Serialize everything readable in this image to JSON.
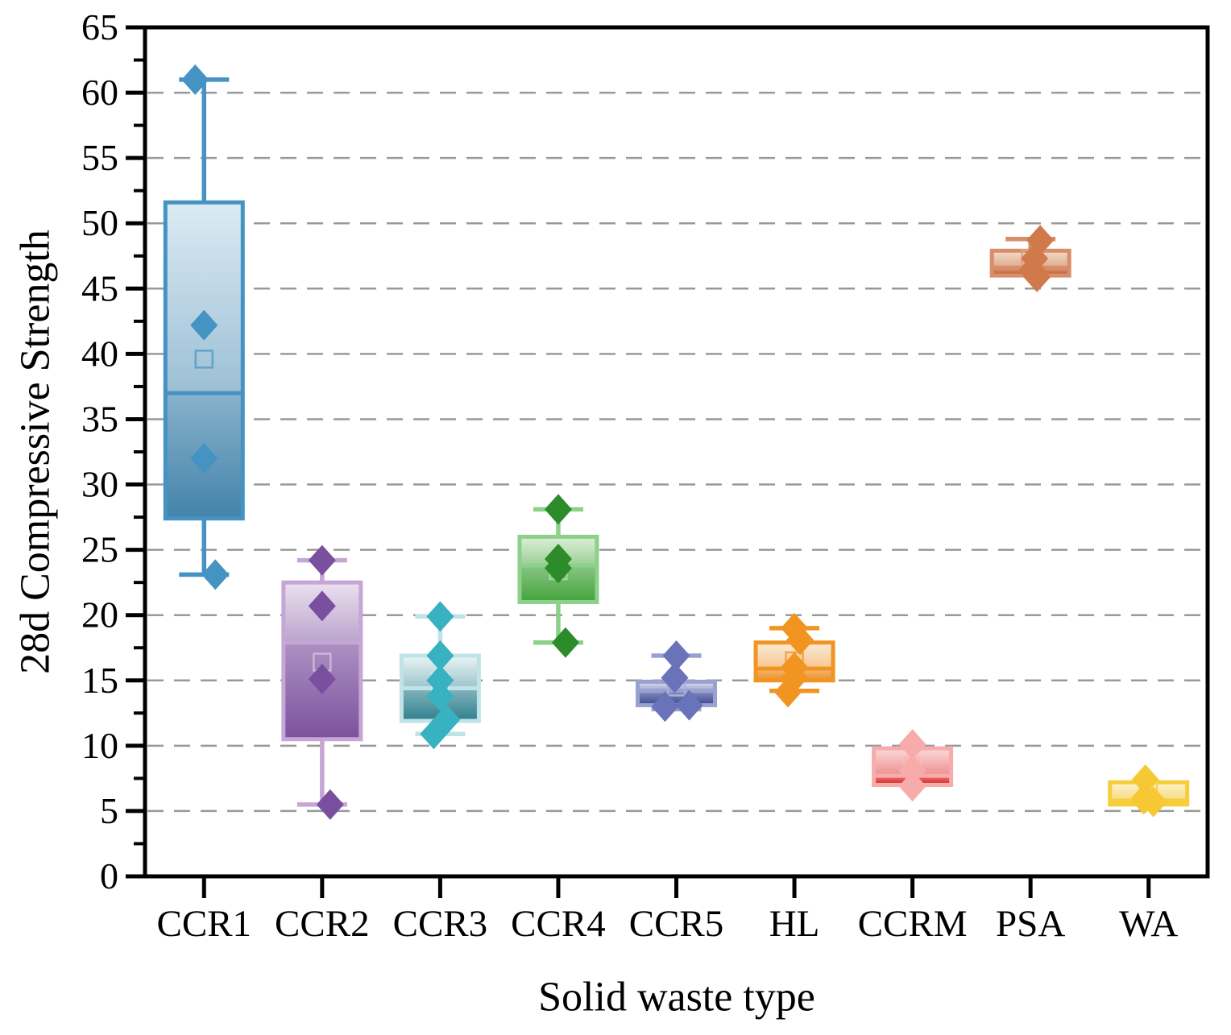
{
  "figure": {
    "background": "#ffffff",
    "frame_color": "#000000",
    "grid_color": "#999999"
  },
  "chart_data": {
    "type": "box",
    "title": "",
    "xlabel": "Solid waste type",
    "ylabel": "28d Compressive Strength",
    "ylim": [
      0,
      65
    ],
    "ytick_interval": 5,
    "yminor_interval": 2.5,
    "yticks": [
      0,
      5,
      10,
      15,
      20,
      25,
      30,
      35,
      40,
      45,
      50,
      55,
      60,
      65
    ],
    "gridlines": {
      "axis": "y",
      "values": [
        5,
        10,
        15,
        20,
        25,
        30,
        35,
        40,
        45,
        50,
        55,
        60
      ],
      "style": "dashed",
      "color": "#999999"
    },
    "legend": null,
    "categories": [
      "CCR1",
      "CCR2",
      "CCR3",
      "CCR4",
      "CCR5",
      "HL",
      "CCRM",
      "PSA",
      "WA"
    ],
    "series": [
      {
        "label": "CCR1",
        "q1": 27.4,
        "median": 37.0,
        "q3": 51.6,
        "whisker_low": 23.1,
        "whisker_high": 61.0,
        "mean": 39.6,
        "points": [
          {
            "v": 61.0,
            "dx": -11
          },
          {
            "v": 42.2,
            "dx": 0
          },
          {
            "v": 32.0,
            "dx": 0
          },
          {
            "v": 23.1,
            "dx": 14
          }
        ],
        "colors": {
          "line": "#4593c2",
          "fill_top": "#dcebf4",
          "fill_bottom": "#4383aa",
          "point": "#4593c2"
        }
      },
      {
        "label": "CCR2",
        "q1": 10.5,
        "median": 17.9,
        "q3": 22.5,
        "whisker_low": 5.5,
        "whisker_high": 24.2,
        "mean": 16.4,
        "points": [
          {
            "v": 24.2,
            "dx": 0
          },
          {
            "v": 20.7,
            "dx": 0
          },
          {
            "v": 15.1,
            "dx": 0
          },
          {
            "v": 5.5,
            "dx": 10
          }
        ],
        "colors": {
          "line": "#c6a6d4",
          "fill_top": "#eae0ef",
          "fill_bottom": "#7b519d",
          "point": "#7b4fa0"
        }
      },
      {
        "label": "CCR3",
        "q1": 11.9,
        "median": 14.4,
        "q3": 16.9,
        "whisker_low": 10.9,
        "whisker_high": 19.9,
        "mean": 14.9,
        "points": [
          {
            "v": 19.9,
            "dx": 0
          },
          {
            "v": 16.9,
            "dx": 0
          },
          {
            "v": 15.0,
            "dx": 0
          },
          {
            "v": 13.8,
            "dx": 0
          },
          {
            "v": 12.0,
            "dx": 8
          },
          {
            "v": 10.9,
            "dx": -8
          }
        ],
        "colors": {
          "line": "#bfe3e7",
          "fill_top": "#eaf5f6",
          "fill_bottom": "#2f7f8d",
          "point": "#38b1c0"
        }
      },
      {
        "label": "CCR4",
        "q1": 21.0,
        "median": 23.8,
        "q3": 26.0,
        "whisker_low": 17.9,
        "whisker_high": 28.1,
        "mean": 23.4,
        "points": [
          {
            "v": 28.1,
            "dx": 0
          },
          {
            "v": 24.3,
            "dx": 0
          },
          {
            "v": 23.6,
            "dx": 0
          },
          {
            "v": 17.9,
            "dx": 9
          }
        ],
        "colors": {
          "line": "#8dd089",
          "fill_top": "#dcefd9",
          "fill_bottom": "#44a23d",
          "point": "#2d8c2a"
        }
      },
      {
        "label": "CCR5",
        "q1": 13.1,
        "median": 14.2,
        "q3": 14.9,
        "whisker_low": 12.8,
        "whisker_high": 16.9,
        "mean": 14.5,
        "points": [
          {
            "v": 16.9,
            "dx": 0
          },
          {
            "v": 15.2,
            "dx": -2
          },
          {
            "v": 13.1,
            "dx": 16
          },
          {
            "v": 13.0,
            "dx": -14
          }
        ],
        "colors": {
          "line": "#99a1cf",
          "fill_top": "#dee1f3",
          "fill_bottom": "#3c4990",
          "point": "#6a73ba"
        }
      },
      {
        "label": "HL",
        "q1": 15.0,
        "median": 15.9,
        "q3": 17.9,
        "whisker_low": 14.2,
        "whisker_high": 19.0,
        "mean": 16.5,
        "points": [
          {
            "v": 19.0,
            "dx": 0
          },
          {
            "v": 18.1,
            "dx": 7
          },
          {
            "v": 16.0,
            "dx": 0
          },
          {
            "v": 15.2,
            "dx": 0
          },
          {
            "v": 14.1,
            "dx": -8
          }
        ],
        "colors": {
          "line": "#f19422",
          "fill_top": "#fcecd8",
          "fill_bottom": "#ee9028",
          "point": "#f19422"
        }
      },
      {
        "label": "CCRM",
        "q1": 7.0,
        "median": 7.7,
        "q3": 9.8,
        "whisker_low": 7.0,
        "whisker_high": 9.8,
        "mean": 8.4,
        "points": [
          {
            "v": 10.1,
            "dx": 0
          },
          {
            "v": 8.1,
            "dx": 0
          },
          {
            "v": 6.9,
            "dx": 0
          }
        ],
        "colors": {
          "line": "#f8abab",
          "fill_top": "#fbdada",
          "fill_bottom": "#da2424",
          "point": "#f8abab"
        }
      },
      {
        "label": "PSA",
        "q1": 46.0,
        "median": 46.6,
        "q3": 47.9,
        "whisker_low": 46.0,
        "whisker_high": 48.8,
        "mean": 47.3,
        "points": [
          {
            "v": 48.7,
            "dx": 12
          },
          {
            "v": 47.3,
            "dx": 5
          },
          {
            "v": 46.4,
            "dx": 2
          },
          {
            "v": 45.9,
            "dx": 8
          }
        ],
        "colors": {
          "line": "#d88e6b",
          "fill_top": "#f4ddcd",
          "fill_bottom": "#bf5c2b",
          "point": "#d07a4c"
        }
      },
      {
        "label": "WA",
        "q1": 5.5,
        "median": 5.8,
        "q3": 7.2,
        "whisker_low": 5.5,
        "whisker_high": 7.2,
        "mean": 6.5,
        "points": [
          {
            "v": 7.4,
            "dx": -4
          },
          {
            "v": 5.9,
            "dx": -6
          },
          {
            "v": 5.7,
            "dx": 6
          }
        ],
        "colors": {
          "line": "#f7cd3b",
          "fill_top": "#fdf3cd",
          "fill_bottom": "#edbb1a",
          "point": "#f6c834"
        }
      }
    ]
  }
}
